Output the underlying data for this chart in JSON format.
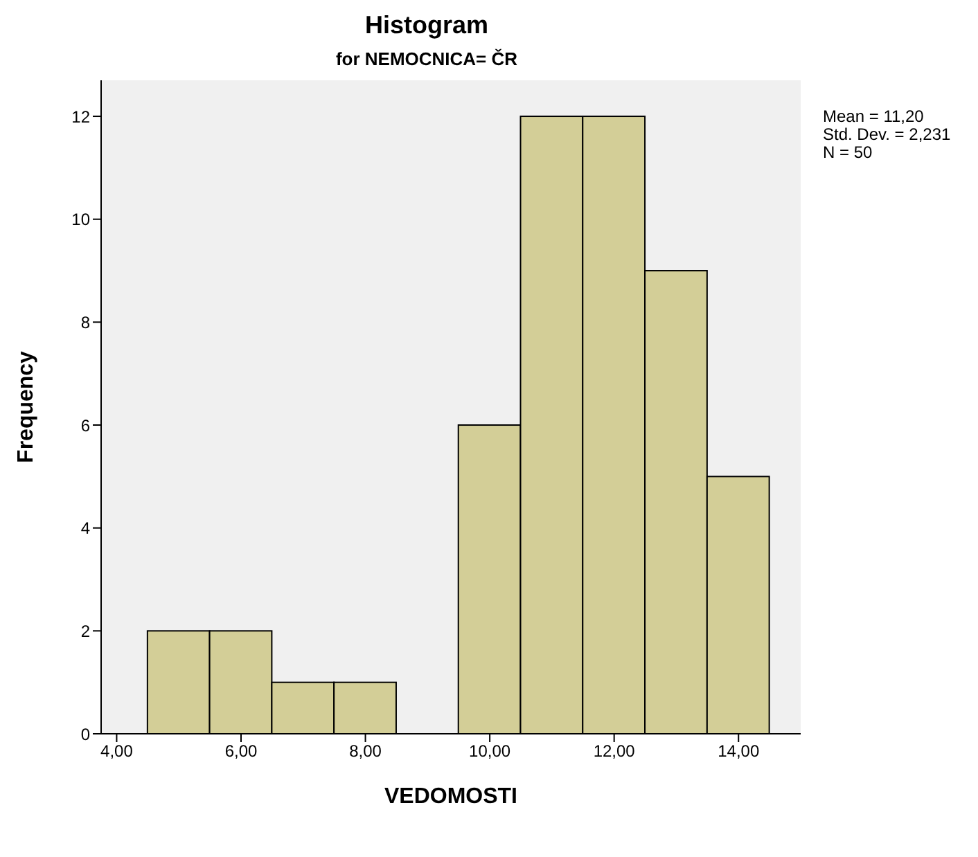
{
  "chart_data": {
    "type": "histogram",
    "title": "Histogram",
    "subtitle": "for NEMOCNICA= ČR",
    "xlabel": "VEDOMOSTI",
    "ylabel": "Frequency",
    "bins": [
      4.5,
      5.5,
      6.5,
      7.5,
      8.5,
      9.5,
      10.5,
      11.5,
      12.5,
      13.5,
      14.5
    ],
    "values": [
      2,
      2,
      1,
      1,
      0,
      6,
      12,
      12,
      9,
      5
    ],
    "color": "#d3ce97",
    "xlim": [
      3.75,
      15
    ],
    "xticks": [
      {
        "value": 4,
        "label": "4,00"
      },
      {
        "value": 6,
        "label": "6,00"
      },
      {
        "value": 8,
        "label": "8,00"
      },
      {
        "value": 10,
        "label": "10,00"
      },
      {
        "value": 12,
        "label": "12,00"
      },
      {
        "value": 14,
        "label": "14,00"
      }
    ],
    "ylim": [
      0,
      12.7
    ],
    "yticks": [
      0,
      2,
      4,
      6,
      8,
      10,
      12
    ],
    "grid": false,
    "annotations": [
      "Mean = 11,20",
      "Std. Dev. = 2,231",
      "N = 50"
    ]
  }
}
